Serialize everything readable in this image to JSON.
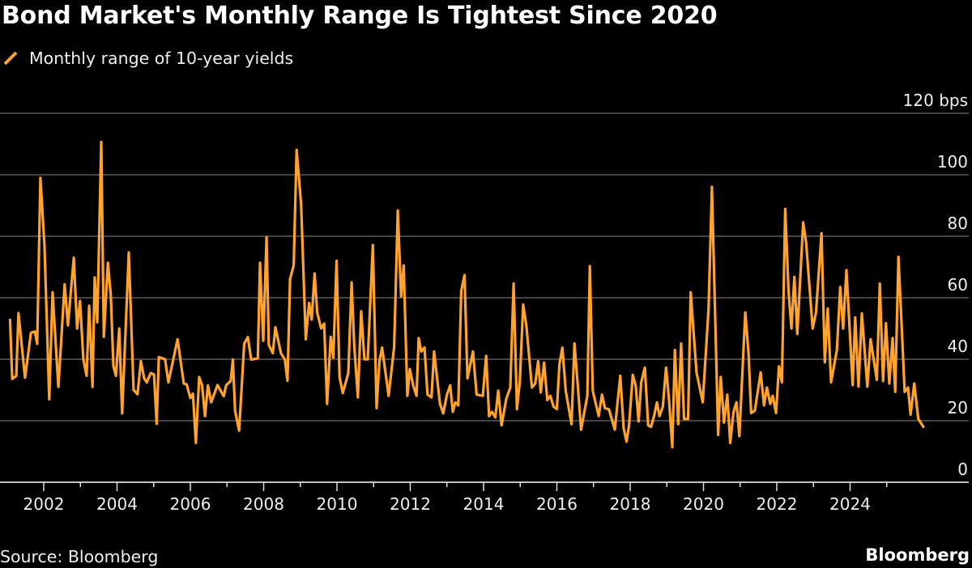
{
  "title": "Bond Market's Monthly Range Is Tightest Since 2020",
  "source": "Source: Bloomberg",
  "brand": "Bloomberg",
  "colors": {
    "line": "#ffa22e",
    "grid": "#5a5a5a",
    "axis": "#ffffff",
    "background": "#000000"
  },
  "chart_data": {
    "type": "line",
    "title": "Bond Market's Monthly Range Is Tightest Since 2020",
    "xlabel": "",
    "ylabel": "bps",
    "ylim": [
      0,
      120
    ],
    "xlim": [
      2000.81,
      2027.24
    ],
    "grid": true,
    "legend_placement": "top-left",
    "y_ticks": [
      {
        "value": 0,
        "label": "0"
      },
      {
        "value": 20,
        "label": "20"
      },
      {
        "value": 40,
        "label": "40"
      },
      {
        "value": 60,
        "label": "60"
      },
      {
        "value": 80,
        "label": "80"
      },
      {
        "value": 100,
        "label": "100"
      },
      {
        "value": 120,
        "label": "120 bps"
      }
    ],
    "x_ticks": [
      {
        "value": 2002,
        "label": "2002"
      },
      {
        "value": 2004,
        "label": "2004"
      },
      {
        "value": 2006,
        "label": "2006"
      },
      {
        "value": 2008,
        "label": "2008"
      },
      {
        "value": 2010,
        "label": "2010"
      },
      {
        "value": 2012,
        "label": "2012"
      },
      {
        "value": 2014,
        "label": "2014"
      },
      {
        "value": 2016,
        "label": "2016"
      },
      {
        "value": 2018,
        "label": "2018"
      },
      {
        "value": 2020,
        "label": "2020"
      },
      {
        "value": 2022,
        "label": "2022"
      },
      {
        "value": 2024,
        "label": "2024"
      }
    ],
    "x_minor_ticks": [
      2003,
      2005,
      2007,
      2009,
      2011,
      2013,
      2015,
      2017,
      2019,
      2021,
      2023,
      2025
    ],
    "series": [
      {
        "name": "Monthly range of 10-year yields",
        "x": [
          2001.08,
          2001.14,
          2001.25,
          2001.31,
          2001.49,
          2001.65,
          2001.76,
          2001.82,
          2001.91,
          2002.02,
          2002.15,
          2002.24,
          2002.4,
          2002.57,
          2002.66,
          2002.82,
          2002.91,
          2002.99,
          2003.08,
          2003.17,
          2003.24,
          2003.33,
          2003.39,
          2003.46,
          2003.57,
          2003.64,
          2003.75,
          2003.83,
          2003.9,
          2003.97,
          2004.06,
          2004.14,
          2004.32,
          2004.45,
          2004.56,
          2004.65,
          2004.74,
          2004.81,
          2004.92,
          2005.01,
          2005.08,
          2005.14,
          2005.31,
          2005.4,
          2005.65,
          2005.82,
          2005.9,
          2006.0,
          2006.07,
          2006.15,
          2006.24,
          2006.32,
          2006.4,
          2006.48,
          2006.57,
          2006.74,
          2006.91,
          2006.98,
          2007.1,
          2007.16,
          2007.22,
          2007.33,
          2007.47,
          2007.57,
          2007.66,
          2007.84,
          2007.9,
          2007.99,
          2008.08,
          2008.14,
          2008.25,
          2008.32,
          2008.47,
          2008.58,
          2008.65,
          2008.72,
          2008.82,
          2008.9,
          2009.02,
          2009.15,
          2009.24,
          2009.31,
          2009.39,
          2009.46,
          2009.57,
          2009.65,
          2009.73,
          2009.83,
          2009.9,
          2009.99,
          2010.07,
          2010.16,
          2010.31,
          2010.4,
          2010.47,
          2010.57,
          2010.66,
          2010.75,
          2010.84,
          2010.98,
          2011.08,
          2011.16,
          2011.23,
          2011.41,
          2011.56,
          2011.66,
          2011.75,
          2011.82,
          2011.92,
          2011.99,
          2012.08,
          2012.17,
          2012.23,
          2012.3,
          2012.39,
          2012.47,
          2012.58,
          2012.65,
          2012.81,
          2012.9,
          2013.0,
          2013.09,
          2013.16,
          2013.23,
          2013.31,
          2013.39,
          2013.48,
          2013.56,
          2013.71,
          2013.81,
          2013.98,
          2014.07,
          2014.15,
          2014.23,
          2014.32,
          2014.4,
          2014.49,
          2014.62,
          2014.73,
          2014.82,
          2014.91,
          2014.99,
          2015.08,
          2015.17,
          2015.32,
          2015.41,
          2015.49,
          2015.56,
          2015.65,
          2015.74,
          2015.82,
          2015.91,
          2016.0,
          2016.07,
          2016.15,
          2016.24,
          2016.4,
          2016.48,
          2016.57,
          2016.66,
          2016.83,
          2016.9,
          2016.98,
          2017.14,
          2017.23,
          2017.31,
          2017.42,
          2017.58,
          2017.73,
          2017.82,
          2017.9,
          2017.97,
          2018.07,
          2018.15,
          2018.23,
          2018.3,
          2018.4,
          2018.49,
          2018.57,
          2018.66,
          2018.73,
          2018.8,
          2018.89,
          2018.98,
          2019.06,
          2019.15,
          2019.22,
          2019.31,
          2019.39,
          2019.47,
          2019.58,
          2019.65,
          2019.81,
          2019.98,
          2020.14,
          2020.23,
          2020.4,
          2020.47,
          2020.56,
          2020.65,
          2020.73,
          2020.82,
          2020.9,
          2020.98,
          2021.14,
          2021.23,
          2021.3,
          2021.4,
          2021.56,
          2021.65,
          2021.73,
          2021.82,
          2021.89,
          2021.98,
          2022.06,
          2022.14,
          2022.23,
          2022.32,
          2022.4,
          2022.48,
          2022.56,
          2022.72,
          2022.8,
          2022.98,
          2023.07,
          2023.22,
          2023.31,
          2023.39,
          2023.48,
          2023.64,
          2023.73,
          2023.81,
          2023.9,
          2024.07,
          2024.14,
          2024.23,
          2024.32,
          2024.47,
          2024.56,
          2024.73,
          2024.81,
          2024.9,
          2024.98,
          2025.07,
          2025.16,
          2025.23,
          2025.32,
          2025.49,
          2025.58,
          2025.65,
          2025.75,
          2025.86,
          2026.0
        ],
        "values": [
          52.8,
          33.6,
          34.6,
          55,
          34,
          48.6,
          49,
          45,
          99,
          77,
          27,
          61.8,
          31,
          64.4,
          51,
          73,
          50,
          59,
          40,
          34.6,
          57.4,
          31,
          66.6,
          52,
          110.7,
          47.3,
          71.4,
          60.9,
          37.8,
          34.6,
          50,
          22.4,
          74.7,
          30,
          28.6,
          39.4,
          33.8,
          32.5,
          35.5,
          35,
          19,
          40.7,
          40,
          32.5,
          46.5,
          32.1,
          31.8,
          27.4,
          28.8,
          12.8,
          34.2,
          31.5,
          21.5,
          31.5,
          26,
          31.6,
          28,
          31.6,
          32.9,
          39.9,
          23.3,
          16.8,
          45.1,
          47.2,
          39.9,
          40.3,
          71.4,
          46,
          79.7,
          44.7,
          42,
          50.4,
          42,
          39.9,
          33,
          66.1,
          70.5,
          108.1,
          90.6,
          46.5,
          58.3,
          52.9,
          67.9,
          55.2,
          50,
          51.6,
          25.5,
          47.3,
          40.5,
          72,
          34.2,
          29,
          35.5,
          65,
          44.6,
          27.6,
          55.6,
          40,
          40,
          77.1,
          24.1,
          39.4,
          43.8,
          28.1,
          44,
          88.4,
          60.4,
          70.5,
          28.1,
          36.8,
          31.5,
          28.1,
          46.9,
          42.5,
          43.8,
          28.5,
          27.6,
          42.5,
          25.5,
          22.4,
          28.5,
          31.5,
          22.9,
          26,
          25,
          62.2,
          67.4,
          33.8,
          42.5,
          28.5,
          28.1,
          41.1,
          21.5,
          22.9,
          21.1,
          29.8,
          18.5,
          27.2,
          30.8,
          64.6,
          23.8,
          32.9,
          57.8,
          50.8,
          30.8,
          32.1,
          39.4,
          29.2,
          38.9,
          26.7,
          28.1,
          24.6,
          23.8,
          38.5,
          43.8,
          29.8,
          18.9,
          45.1,
          31.6,
          17.1,
          28.1,
          70.3,
          29.8,
          21.5,
          28.5,
          24.1,
          23.7,
          17.1,
          34.6,
          17.6,
          13.2,
          18.5,
          34.9,
          31.5,
          19.8,
          32.4,
          37.3,
          18.5,
          18,
          22,
          26,
          21.5,
          24.6,
          37.3,
          26.7,
          11.4,
          43,
          18.9,
          45.1,
          20.6,
          20.6,
          61.8,
          35.7,
          26,
          56.5,
          96.1,
          15.4,
          34.2,
          19.4,
          28.5,
          12.8,
          22.9,
          26,
          15,
          55.2,
          41.6,
          22.5,
          23.3,
          35.7,
          25,
          30.8,
          25.5,
          28.1,
          22.5,
          37.7,
          32.5,
          88.9,
          62.2,
          50,
          66.8,
          48.2,
          84.5,
          78,
          50,
          55.2,
          81,
          39,
          56.5,
          32.5,
          43,
          63.5,
          50,
          69,
          31.6,
          53.6,
          31.1,
          54.9,
          31.1,
          46.5,
          33.3,
          64.6,
          32.9,
          51.7,
          32.1,
          46.9,
          29.4,
          73.3,
          29.4,
          30.8,
          22,
          32.1,
          20.6,
          18
        ]
      }
    ]
  }
}
